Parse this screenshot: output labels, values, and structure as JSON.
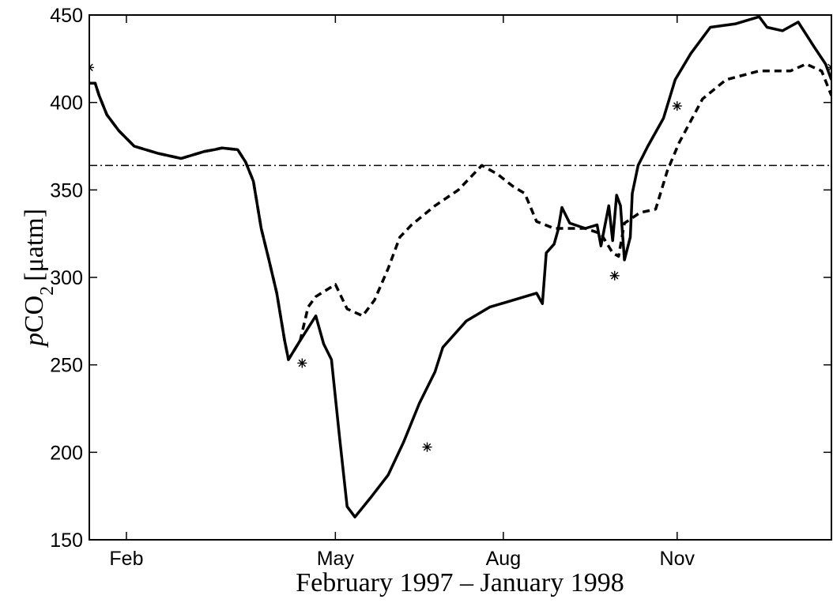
{
  "chart_data": {
    "type": "line",
    "xlabel": "February 1997 – January 1998",
    "ylabel": {
      "italic": "p",
      "main": "CO",
      "sub": "2",
      "unit": "[μatm]"
    },
    "xlim": [
      0,
      380
    ],
    "ylim": [
      150,
      450
    ],
    "yticks": [
      150,
      200,
      250,
      300,
      350,
      400,
      450
    ],
    "xticks": [
      {
        "value": 19,
        "label": "Feb"
      },
      {
        "value": 126,
        "label": "May"
      },
      {
        "value": 212,
        "label": "Aug"
      },
      {
        "value": 301,
        "label": "Nov"
      }
    ],
    "reference_line": 364,
    "series": [
      {
        "color": "#000000",
        "line_style": "solid",
        "x": [
          0,
          3,
          5,
          9,
          15,
          23,
          35,
          47,
          59,
          64,
          68,
          76,
          80,
          84,
          88,
          92,
          96,
          100,
          102,
          108,
          116,
          120,
          124,
          128,
          132,
          136,
          144,
          153,
          161,
          169,
          177,
          181,
          193,
          205,
          217,
          229,
          232,
          234,
          238,
          240,
          242,
          246,
          254,
          260,
          262,
          266,
          268,
          270,
          272,
          274,
          277,
          278,
          281,
          286,
          294,
          300,
          308,
          318,
          331,
          343,
          347,
          355,
          363,
          371,
          377,
          380
        ],
        "values": [
          411,
          411,
          404,
          393,
          384,
          375,
          371,
          368,
          372,
          373,
          374,
          373,
          366,
          355,
          328,
          310,
          291,
          264,
          253,
          264,
          278,
          262,
          253,
          210,
          169,
          163,
          174,
          187,
          206,
          228,
          246,
          260,
          275,
          283,
          287,
          291,
          285,
          314,
          319,
          327,
          340,
          331,
          328,
          330,
          318,
          341,
          321,
          347,
          341,
          310,
          323,
          348,
          364,
          375,
          391,
          413,
          428,
          443,
          445,
          449,
          443,
          441,
          446,
          432,
          422,
          413
        ]
      },
      {
        "color": "#000000",
        "line_style": "dashed",
        "x": [
          0,
          3,
          5,
          9,
          15,
          23,
          35,
          47,
          59,
          64,
          68,
          76,
          80,
          84,
          88,
          92,
          96,
          100,
          102,
          108,
          112,
          116,
          126,
          132,
          140,
          146,
          153,
          159,
          165,
          177,
          189,
          201,
          209,
          217,
          223,
          229,
          238,
          254,
          262,
          268,
          271,
          274,
          282,
          290,
          296,
          302,
          314,
          326,
          343,
          359,
          367,
          375,
          380
        ],
        "values": [
          411,
          411,
          404,
          393,
          384,
          375,
          371,
          368,
          372,
          373,
          374,
          373,
          366,
          355,
          328,
          310,
          291,
          264,
          253,
          264,
          283,
          289,
          296,
          282,
          278,
          287,
          305,
          323,
          330,
          341,
          350,
          364,
          359,
          352,
          348,
          332,
          328,
          328,
          325,
          314,
          312,
          331,
          337,
          339,
          361,
          377,
          402,
          413,
          418,
          418,
          422,
          418,
          404
        ]
      }
    ],
    "markers": {
      "x": [
        0,
        109,
        173,
        269,
        301,
        380
      ],
      "y": [
        420,
        251,
        203,
        301,
        398,
        420
      ]
    }
  }
}
